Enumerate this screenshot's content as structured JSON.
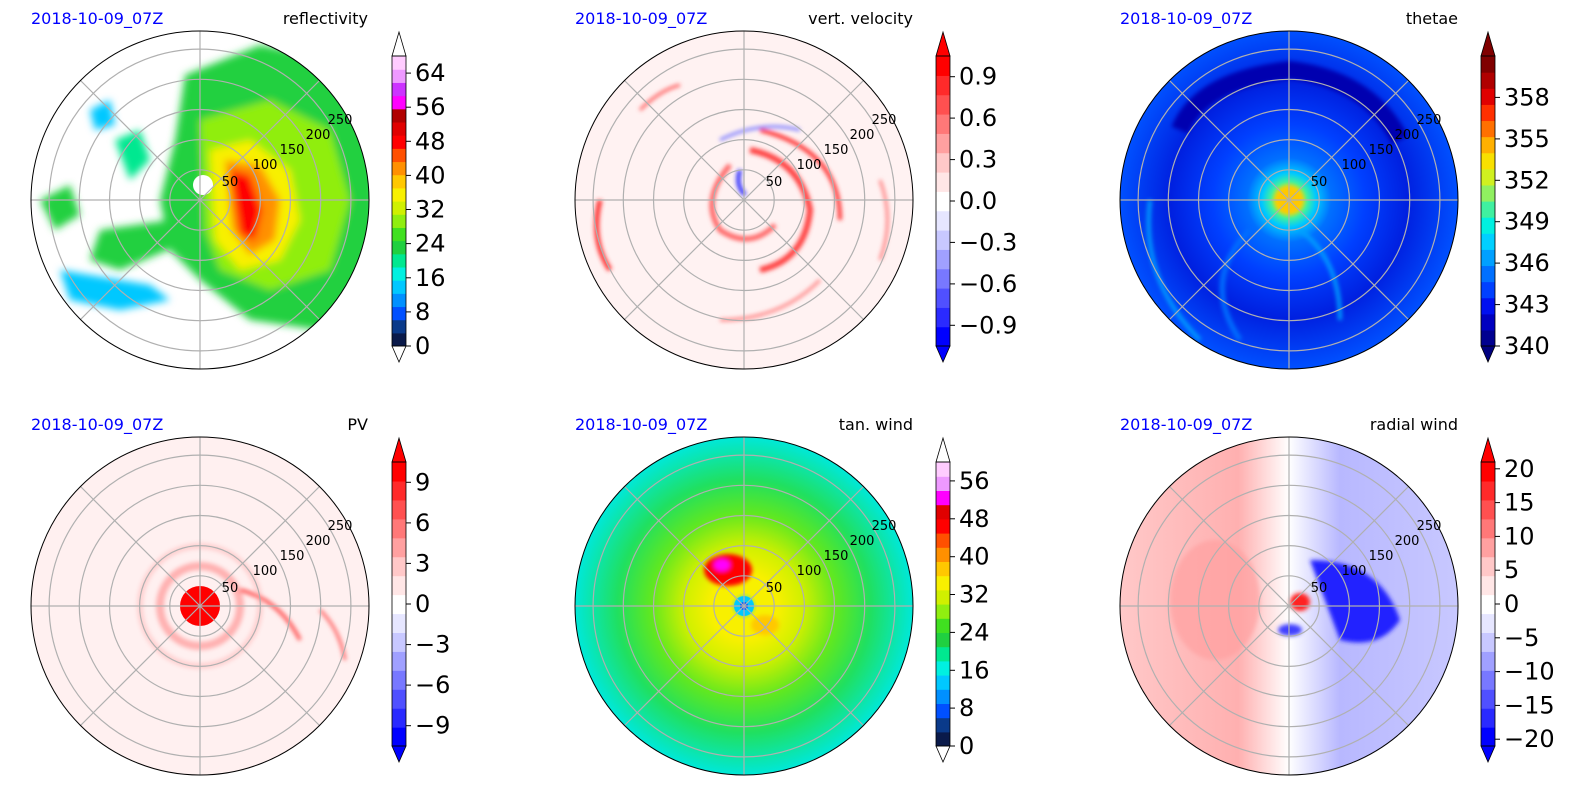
{
  "figure": {
    "panels": [
      {
        "timestamp": "2018-10-09_07Z",
        "title": "reflectivity",
        "field": "reflectivity",
        "radial_labels": [
          "50",
          "100",
          "150",
          "200",
          "250"
        ],
        "colorbar": {
          "ticks": [
            "0",
            "8",
            "16",
            "24",
            "32",
            "40",
            "48",
            "56",
            "64"
          ],
          "min": 0,
          "max": 68,
          "extend": "both",
          "colors": [
            "#0a1a4a",
            "#0a3a8a",
            "#0050ff",
            "#0090ff",
            "#00c8ff",
            "#00f0e0",
            "#00e890",
            "#20d040",
            "#40e020",
            "#90ee10",
            "#d0f000",
            "#f8f000",
            "#ffc800",
            "#ff9000",
            "#ff5000",
            "#ff0000",
            "#e00000",
            "#b00000",
            "#ff00ff",
            "#cc33ff",
            "#ee99ff",
            "#ffccff"
          ],
          "under_color": "#ffffff",
          "over_color": "#ffffff"
        }
      },
      {
        "timestamp": "2018-10-09_07Z",
        "title": "vert. velocity",
        "field": "vertical velocity",
        "radial_labels": [
          "50",
          "100",
          "150",
          "200",
          "250"
        ],
        "colorbar": {
          "ticks": [
            "0.9",
            "0.6",
            "0.3",
            "0.0",
            "−0.3",
            "−0.6",
            "−0.9"
          ],
          "tick_values": [
            0.9,
            0.6,
            0.3,
            0.0,
            -0.3,
            -0.6,
            -0.9
          ],
          "min": -1.05,
          "max": 1.05,
          "extend": "both",
          "colors": [
            "#0000ff",
            "#2a2aff",
            "#5050ff",
            "#7878ff",
            "#a0a0ff",
            "#c8c8ff",
            "#e6e6ff",
            "#ffffff",
            "#ffe6e6",
            "#ffc8c8",
            "#ffa0a0",
            "#ff7878",
            "#ff5050",
            "#ff2a2a",
            "#ff0000"
          ],
          "under_color": "#0000ff",
          "over_color": "#ff0000"
        }
      },
      {
        "timestamp": "2018-10-09_07Z",
        "title": "thetae",
        "field": "equivalent potential temperature",
        "radial_labels": [
          "50",
          "100",
          "150",
          "200",
          "250"
        ],
        "colorbar": {
          "ticks": [
            "358",
            "355",
            "352",
            "349",
            "346",
            "343",
            "340"
          ],
          "tick_values": [
            358,
            355,
            352,
            349,
            346,
            343,
            340
          ],
          "min": 340,
          "max": 361,
          "extend": "both",
          "colors": [
            "#000090",
            "#0000c0",
            "#0010f0",
            "#0040ff",
            "#0070ff",
            "#00a0ff",
            "#00d0ff",
            "#00f0e0",
            "#40f0a0",
            "#90f060",
            "#d0f020",
            "#f8e000",
            "#ffb000",
            "#ff7000",
            "#ff3000",
            "#e00000",
            "#b00000",
            "#800000"
          ],
          "under_color": "#000080",
          "over_color": "#800000"
        }
      },
      {
        "timestamp": "2018-10-09_07Z",
        "title": "PV",
        "field": "potential vorticity",
        "radial_labels": [
          "50",
          "100",
          "150",
          "200",
          "250"
        ],
        "colorbar": {
          "ticks": [
            "9",
            "6",
            "3",
            "0",
            "−3",
            "−6",
            "−9"
          ],
          "tick_values": [
            9,
            6,
            3,
            0,
            -3,
            -6,
            -9
          ],
          "min": -10.5,
          "max": 10.5,
          "extend": "both",
          "colors": [
            "#0000ff",
            "#2a2aff",
            "#5050ff",
            "#7878ff",
            "#a0a0ff",
            "#c8c8ff",
            "#e6e6ff",
            "#ffffff",
            "#ffe6e6",
            "#ffc8c8",
            "#ffa0a0",
            "#ff7878",
            "#ff5050",
            "#ff2a2a",
            "#ff0000"
          ],
          "under_color": "#0000ff",
          "over_color": "#ff0000"
        }
      },
      {
        "timestamp": "2018-10-09_07Z",
        "title": "tan. wind",
        "field": "tangential wind",
        "radial_labels": [
          "50",
          "100",
          "150",
          "200",
          "250"
        ],
        "colorbar": {
          "ticks": [
            "0",
            "8",
            "16",
            "24",
            "32",
            "40",
            "48",
            "56"
          ],
          "min": 0,
          "max": 60,
          "extend": "both",
          "colors": [
            "#0a1a4a",
            "#0a3a8a",
            "#0050ff",
            "#0090ff",
            "#00c8ff",
            "#00f0e0",
            "#00e890",
            "#20d040",
            "#40e020",
            "#90ee10",
            "#d0f000",
            "#f8f000",
            "#ffc800",
            "#ff9000",
            "#ff5000",
            "#ff0000",
            "#e00000",
            "#ff00ff",
            "#ee99ff",
            "#ffccff"
          ],
          "under_color": "#ffffff",
          "over_color": "#ffffff"
        }
      },
      {
        "timestamp": "2018-10-09_07Z",
        "title": "radial wind",
        "field": "radial wind",
        "radial_labels": [
          "50",
          "100",
          "150",
          "200",
          "250"
        ],
        "colorbar": {
          "ticks": [
            "20",
            "15",
            "10",
            "5",
            "0",
            "−5",
            "−10",
            "−15",
            "−20"
          ],
          "tick_values": [
            20,
            15,
            10,
            5,
            0,
            -5,
            -10,
            -15,
            -20
          ],
          "min": -21,
          "max": 21,
          "extend": "both",
          "colors": [
            "#0000ff",
            "#2a2aff",
            "#5050ff",
            "#7878ff",
            "#a0a0ff",
            "#c8c8ff",
            "#e6e6ff",
            "#ffffff",
            "#ffe6e6",
            "#ffc8c8",
            "#ffa0a0",
            "#ff7878",
            "#ff5050",
            "#ff2a2a",
            "#ff0000"
          ],
          "under_color": "#0000ff",
          "over_color": "#ff0000"
        }
      }
    ]
  },
  "chart_data": [
    {
      "type": "heatmap",
      "projection": "polar",
      "title": "reflectivity",
      "annotation": "2018-10-09_07Z",
      "r_ticks": [
        50,
        100,
        150,
        200,
        250
      ],
      "colorbar_ticks": [
        0,
        8,
        16,
        24,
        32,
        40,
        48,
        56,
        64
      ],
      "colorbar_range": [
        0,
        68
      ],
      "grid": true
    },
    {
      "type": "heatmap",
      "projection": "polar",
      "title": "vert. velocity",
      "annotation": "2018-10-09_07Z",
      "r_ticks": [
        50,
        100,
        150,
        200,
        250
      ],
      "colorbar_ticks": [
        -0.9,
        -0.6,
        -0.3,
        0.0,
        0.3,
        0.6,
        0.9
      ],
      "colorbar_range": [
        -1.05,
        1.05
      ],
      "grid": true
    },
    {
      "type": "heatmap",
      "projection": "polar",
      "title": "thetae",
      "annotation": "2018-10-09_07Z",
      "r_ticks": [
        50,
        100,
        150,
        200,
        250
      ],
      "colorbar_ticks": [
        340,
        343,
        346,
        349,
        352,
        355,
        358
      ],
      "colorbar_range": [
        340,
        361
      ],
      "grid": true
    },
    {
      "type": "heatmap",
      "projection": "polar",
      "title": "PV",
      "annotation": "2018-10-09_07Z",
      "r_ticks": [
        50,
        100,
        150,
        200,
        250
      ],
      "colorbar_ticks": [
        -9,
        -6,
        -3,
        0,
        3,
        6,
        9
      ],
      "colorbar_range": [
        -10.5,
        10.5
      ],
      "grid": true
    },
    {
      "type": "heatmap",
      "projection": "polar",
      "title": "tan. wind",
      "annotation": "2018-10-09_07Z",
      "r_ticks": [
        50,
        100,
        150,
        200,
        250
      ],
      "colorbar_ticks": [
        0,
        8,
        16,
        24,
        32,
        40,
        48,
        56
      ],
      "colorbar_range": [
        0,
        60
      ],
      "grid": true
    },
    {
      "type": "heatmap",
      "projection": "polar",
      "title": "radial wind",
      "annotation": "2018-10-09_07Z",
      "r_ticks": [
        50,
        100,
        150,
        200,
        250
      ],
      "colorbar_ticks": [
        -20,
        -15,
        -10,
        -5,
        0,
        5,
        10,
        15,
        20
      ],
      "colorbar_range": [
        -21,
        21
      ],
      "grid": true
    }
  ]
}
